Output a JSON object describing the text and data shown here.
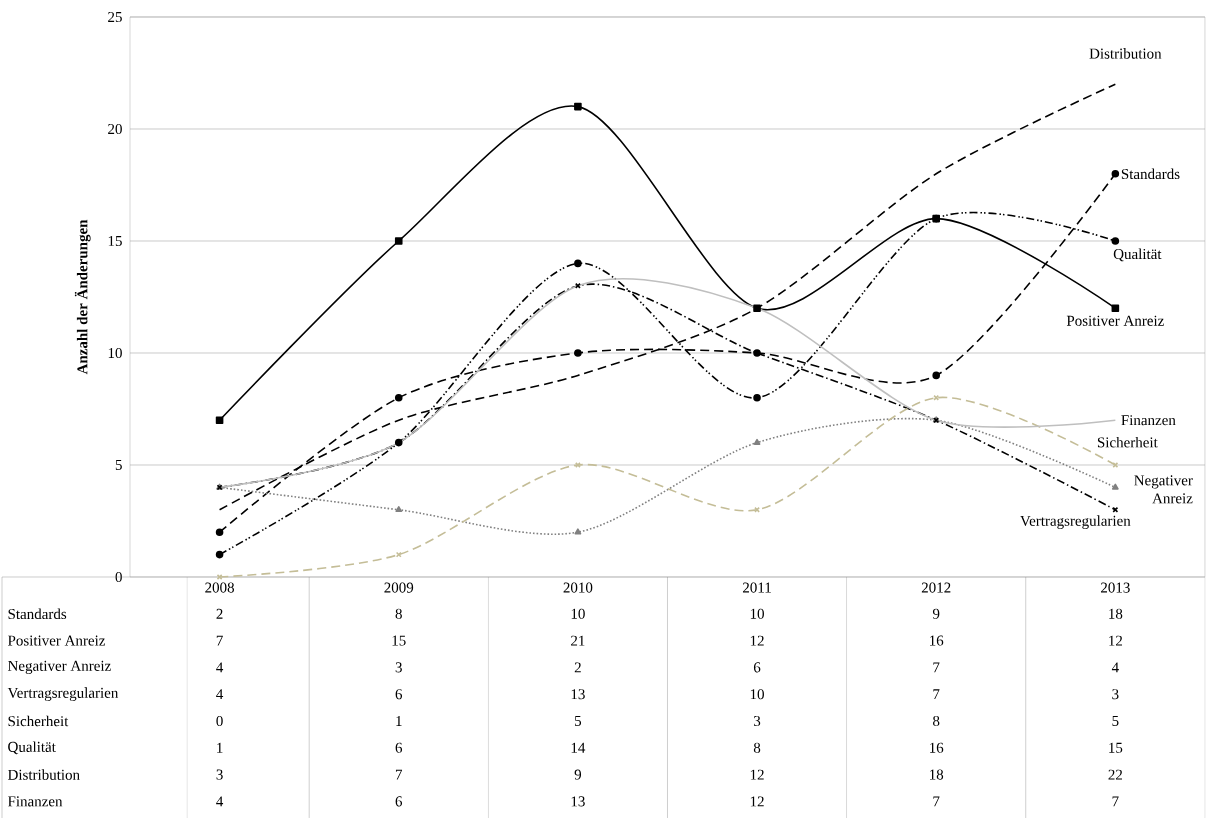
{
  "chart_data": {
    "type": "line",
    "ylabel": "Anzahl der Änderungen",
    "categories": [
      "2008",
      "2009",
      "2010",
      "2011",
      "2012",
      "2013"
    ],
    "ylim": [
      0,
      25
    ],
    "yticks": [
      0,
      5,
      10,
      15,
      20,
      25
    ],
    "grid": "y",
    "data_labels": true,
    "series": [
      {
        "name": "Standards",
        "color": "#000000",
        "marker": "circle",
        "line_style": "dashed",
        "values": [
          2,
          8,
          10,
          10,
          9,
          18
        ]
      },
      {
        "name": "Positiver Anreiz",
        "color": "#000000",
        "marker": "square",
        "line_style": "solid",
        "values": [
          7,
          15,
          21,
          12,
          16,
          12
        ]
      },
      {
        "name": "Negativer Anreiz",
        "color": "#808080",
        "marker": "triangle",
        "line_style": "dotted",
        "values": [
          4,
          3,
          2,
          6,
          7,
          4
        ]
      },
      {
        "name": "Vertragsregularien",
        "color": "#000000",
        "marker": "cross",
        "line_style": "dashdot",
        "values": [
          4,
          6,
          13,
          10,
          7,
          3
        ]
      },
      {
        "name": "Sicherheit",
        "color": "#c4bd97",
        "marker": "cross",
        "line_style": "dashed",
        "values": [
          0,
          1,
          5,
          3,
          8,
          5
        ]
      },
      {
        "name": "Qualität",
        "color": "#000000",
        "marker": "circle",
        "line_style": "dashdotdot",
        "values": [
          1,
          6,
          14,
          8,
          16,
          15
        ]
      },
      {
        "name": "Distribution",
        "color": "#000000",
        "marker": "none",
        "line_style": "dashed",
        "values": [
          3,
          7,
          9,
          12,
          18,
          22
        ]
      },
      {
        "name": "Finanzen",
        "color": "#bfbfbf",
        "marker": "none",
        "line_style": "solid",
        "values": [
          4,
          6,
          13,
          12,
          7,
          7
        ]
      }
    ]
  }
}
